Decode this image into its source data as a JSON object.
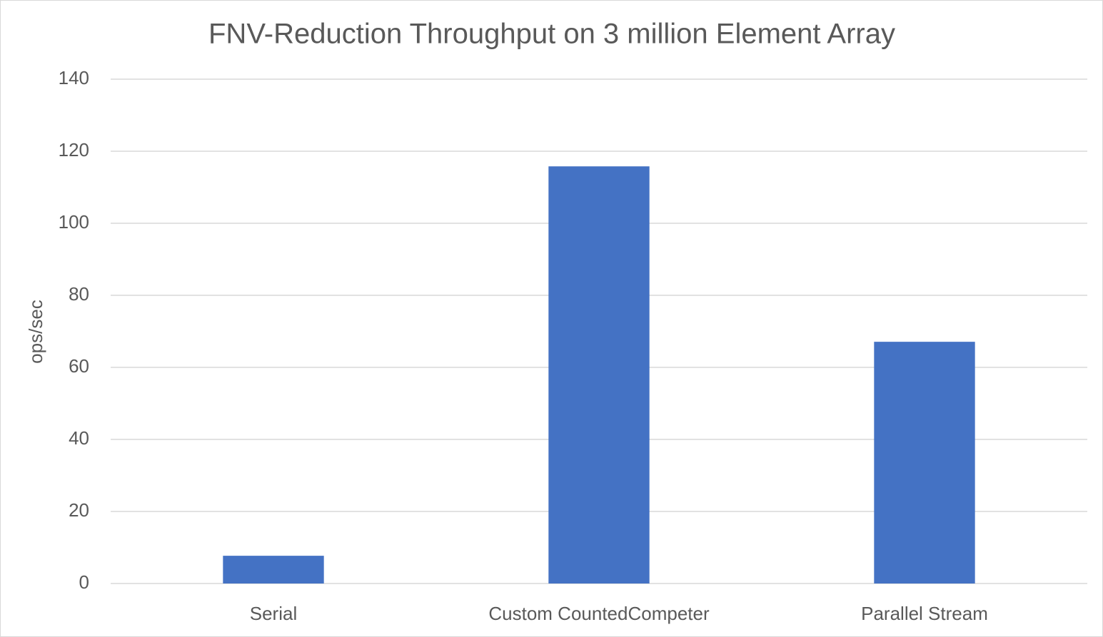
{
  "chart_data": {
    "type": "bar",
    "title": "FNV-Reduction Throughput on 3 million Element Array",
    "y_label": "ops/sec",
    "categories": [
      "Serial",
      "Custom CountedCompeter",
      "Parallel Stream"
    ],
    "values": [
      7.7,
      115.8,
      67.1
    ],
    "color": "#4472c4",
    "ylim": [
      0,
      140
    ],
    "yticks": [
      0,
      20,
      40,
      60,
      80,
      100,
      120,
      140
    ],
    "grid": true
  }
}
